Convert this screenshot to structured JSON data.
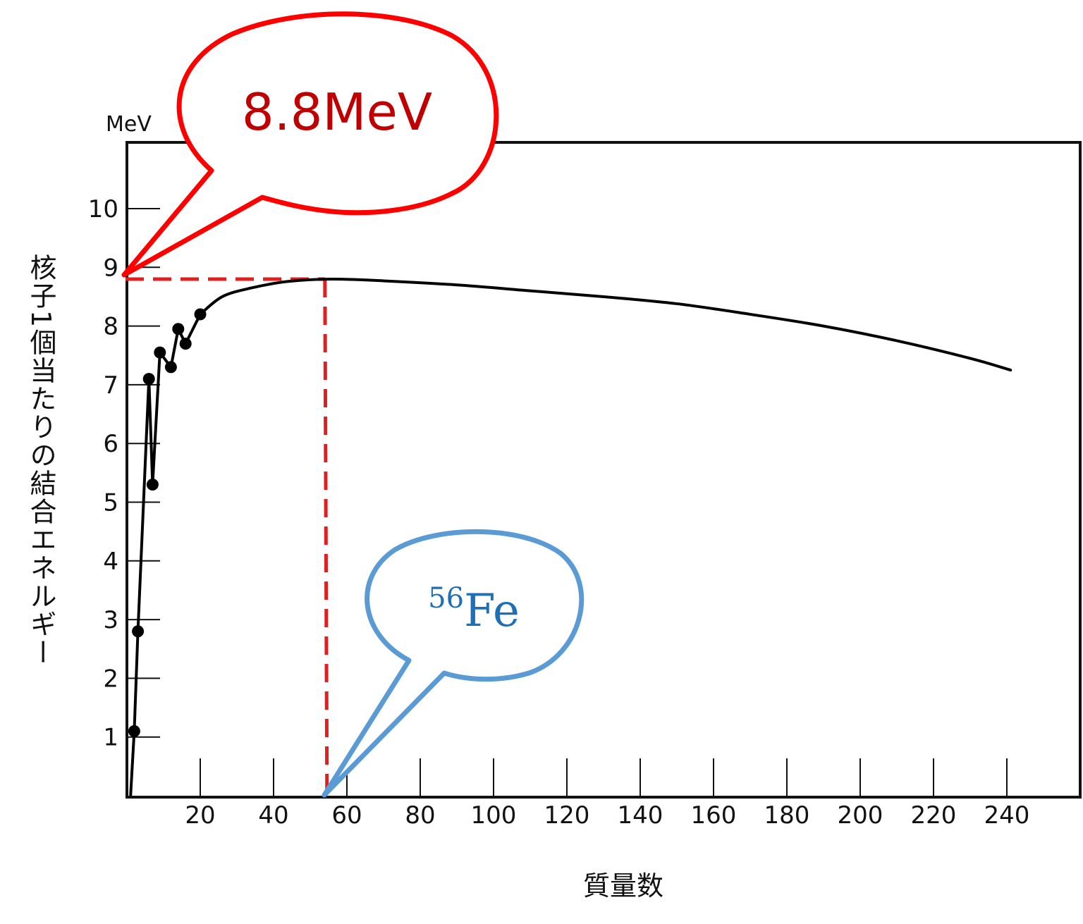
{
  "chart_data": {
    "type": "line",
    "title": "",
    "xlabel": "質量数",
    "ylabel": "核子1個当たりの結合エネルギー",
    "yunit": "MeV",
    "xlim": [
      0,
      260
    ],
    "ylim": [
      0,
      11
    ],
    "x_ticks": [
      20,
      40,
      60,
      80,
      100,
      120,
      140,
      160,
      180,
      200,
      220,
      240
    ],
    "y_ticks": [
      1,
      2,
      3,
      4,
      5,
      6,
      7,
      8,
      9,
      10
    ],
    "grid": false,
    "legend": "none",
    "light_nuclei_points": [
      {
        "x": 2,
        "y": 1.1
      },
      {
        "x": 3,
        "y": 2.8
      },
      {
        "x": 6,
        "y": 7.1
      },
      {
        "x": 7,
        "y": 5.3
      },
      {
        "x": 9,
        "y": 7.55
      },
      {
        "x": 12,
        "y": 7.3
      },
      {
        "x": 14,
        "y": 7.95
      },
      {
        "x": 16,
        "y": 7.7
      },
      {
        "x": 20,
        "y": 8.2
      }
    ],
    "light_nuclei_line": [
      {
        "x": 1,
        "y": 0
      },
      {
        "x": 2,
        "y": 1.1
      },
      {
        "x": 3,
        "y": 2.8
      },
      {
        "x": 6,
        "y": 7.1
      },
      {
        "x": 7,
        "y": 5.3
      },
      {
        "x": 9,
        "y": 7.55
      },
      {
        "x": 12,
        "y": 7.3
      },
      {
        "x": 14,
        "y": 7.95
      },
      {
        "x": 16,
        "y": 7.7
      },
      {
        "x": 20,
        "y": 8.2
      }
    ],
    "curve": [
      {
        "x": 20,
        "y": 8.2
      },
      {
        "x": 26,
        "y": 8.5
      },
      {
        "x": 34,
        "y": 8.65
      },
      {
        "x": 44,
        "y": 8.76
      },
      {
        "x": 56,
        "y": 8.8
      },
      {
        "x": 70,
        "y": 8.77
      },
      {
        "x": 90,
        "y": 8.7
      },
      {
        "x": 110,
        "y": 8.6
      },
      {
        "x": 130,
        "y": 8.5
      },
      {
        "x": 150,
        "y": 8.38
      },
      {
        "x": 170,
        "y": 8.2
      },
      {
        "x": 190,
        "y": 8.0
      },
      {
        "x": 210,
        "y": 7.75
      },
      {
        "x": 230,
        "y": 7.45
      },
      {
        "x": 241,
        "y": 7.25
      }
    ],
    "peak": {
      "x": 54,
      "y": 8.8
    },
    "callouts": {
      "energy": {
        "text": "8.8MeV",
        "color": "#c00000",
        "outline": "#ff0000"
      },
      "iron": {
        "sup": "56",
        "text": "Fe",
        "color": "#1f6fb5",
        "outline": "#5b9bd5"
      }
    }
  }
}
